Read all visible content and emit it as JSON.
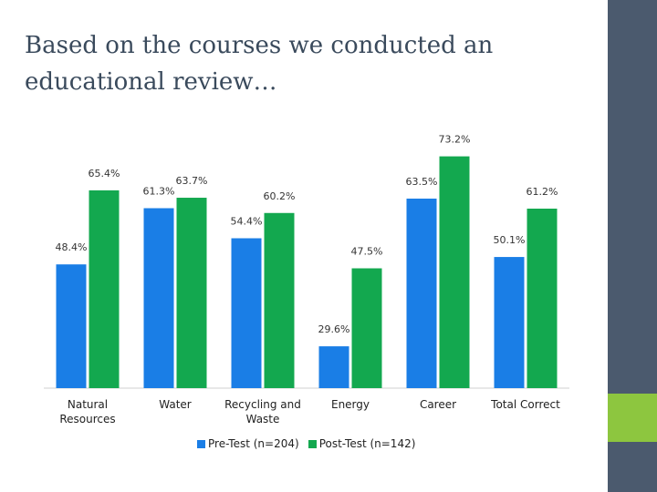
{
  "slide": {
    "title": "Based on the courses we conducted an educational review…"
  },
  "colors": {
    "pre": "#1a7ee6",
    "post": "#13a84f",
    "sidebar": "#4b5a6e",
    "accent": "#8dc63f",
    "title": "#3a4a5c"
  },
  "chart_data": {
    "type": "bar",
    "title": "",
    "xlabel": "",
    "ylabel": "",
    "ylim": [
      20,
      75
    ],
    "categories": [
      "Natural Resources",
      "Water",
      "Recycling and Waste",
      "Energy",
      "Career",
      "Total Correct"
    ],
    "series": [
      {
        "name": "Pre-Test (n=204)",
        "values": [
          48.4,
          61.3,
          54.4,
          29.6,
          63.5,
          50.1
        ],
        "labels": [
          "48.4%",
          "61.3%",
          "54.4%",
          "29.6%",
          "63.5%",
          "50.1%"
        ]
      },
      {
        "name": "Post-Test (n=142)",
        "values": [
          65.4,
          63.7,
          60.2,
          47.5,
          73.2,
          61.2
        ],
        "labels": [
          "65.4%",
          "63.7%",
          "60.2%",
          "47.5%",
          "73.2%",
          "61.2%"
        ]
      }
    ],
    "category_labels": [
      [
        "Natural",
        "Resources"
      ],
      [
        "Water"
      ],
      [
        "Recycling and",
        "Waste"
      ],
      [
        "Energy"
      ],
      [
        "Career"
      ],
      [
        "Total Correct"
      ]
    ],
    "legend": "bottom"
  }
}
